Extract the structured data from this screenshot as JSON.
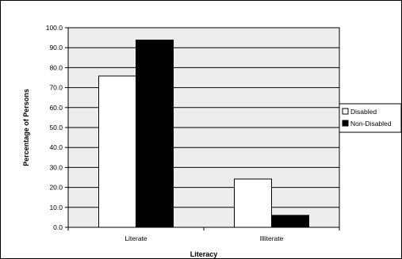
{
  "chart_data": {
    "type": "bar",
    "categories": [
      "Literate",
      "Illiterate"
    ],
    "series": [
      {
        "name": "Disabled",
        "values": [
          75.8,
          24.2
        ],
        "color": "#ffffff"
      },
      {
        "name": "Non-Disabled",
        "values": [
          93.8,
          6.0
        ],
        "color": "#000000"
      }
    ],
    "xlabel": "Literacy",
    "ylabel": "Percentage of Persons",
    "ylim": [
      0,
      100
    ],
    "yticks": [
      "0.0",
      "10.0",
      "20.0",
      "30.0",
      "40.0",
      "50.0",
      "60.0",
      "70.0",
      "80.0",
      "90.0",
      "100.0"
    ],
    "grid": true,
    "plot_background": "#ededed",
    "legend_position": "right"
  }
}
